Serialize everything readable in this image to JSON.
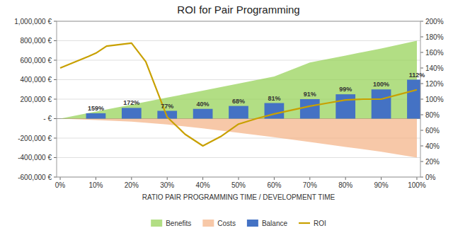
{
  "chart_data": {
    "type": "bar",
    "title": "ROI for Pair Programming",
    "xlabel": "RATIO PAIR PROGRAMMING TIME / DEVELOPMENT TIME",
    "xlim": [
      -1,
      101
    ],
    "xticks": [
      {
        "value": 0,
        "label": "0%"
      },
      {
        "value": 10,
        "label": "10%"
      },
      {
        "value": 20,
        "label": "20%"
      },
      {
        "value": 30,
        "label": "30%"
      },
      {
        "value": 40,
        "label": "40%"
      },
      {
        "value": 50,
        "label": "50%"
      },
      {
        "value": 60,
        "label": "60%"
      },
      {
        "value": 70,
        "label": "70%"
      },
      {
        "value": 80,
        "label": "80%"
      },
      {
        "value": 90,
        "label": "90%"
      },
      {
        "value": 100,
        "label": "100%"
      }
    ],
    "ylim": [
      -600000,
      1000000
    ],
    "yticks": [
      {
        "value": -600000,
        "label": "-600,000 €"
      },
      {
        "value": -400000,
        "label": "-400,000 €"
      },
      {
        "value": -200000,
        "label": "-200,000 €"
      },
      {
        "value": 0,
        "label": "- €"
      },
      {
        "value": 200000,
        "label": "200,000 €"
      },
      {
        "value": 400000,
        "label": "400,000 €"
      },
      {
        "value": 600000,
        "label": "600,000 €"
      },
      {
        "value": 800000,
        "label": "800,000 €"
      },
      {
        "value": 1000000,
        "label": "1,000,000 €"
      }
    ],
    "y2lim": [
      0,
      200
    ],
    "y2ticks": [
      {
        "value": 0,
        "label": "0%"
      },
      {
        "value": 20,
        "label": "20%"
      },
      {
        "value": 40,
        "label": "40%"
      },
      {
        "value": 60,
        "label": "60%"
      },
      {
        "value": 80,
        "label": "80%"
      },
      {
        "value": 100,
        "label": "100%"
      },
      {
        "value": 120,
        "label": "120%"
      },
      {
        "value": 140,
        "label": "140%"
      },
      {
        "value": 160,
        "label": "160%"
      },
      {
        "value": 180,
        "label": "180%"
      },
      {
        "value": 200,
        "label": "200%"
      }
    ],
    "grid": true,
    "legend": "bottom",
    "series": [
      {
        "name": "Benefits",
        "type": "area",
        "color": "#92d050",
        "x": [
          0,
          10,
          20,
          30,
          40,
          50,
          60,
          70,
          80,
          90,
          100
        ],
        "values": [
          0,
          72000,
          144000,
          216000,
          288000,
          360000,
          432000,
          576000,
          648000,
          720000,
          800000
        ]
      },
      {
        "name": "Costs",
        "type": "area",
        "color": "#f4b183",
        "x": [
          0,
          10,
          20,
          30,
          40,
          50,
          60,
          70,
          80,
          90,
          100
        ],
        "values": [
          0,
          -15000,
          -30000,
          -60000,
          -100000,
          -145000,
          -190000,
          -240000,
          -290000,
          -340000,
          -400000
        ]
      },
      {
        "name": "Balance",
        "type": "bar",
        "color": "#4472c4",
        "x": [
          10,
          20,
          30,
          40,
          50,
          60,
          70,
          80,
          90,
          100
        ],
        "values": [
          55000,
          110000,
          80000,
          100000,
          130000,
          160000,
          200000,
          250000,
          300000,
          400000
        ]
      },
      {
        "name": "ROI",
        "type": "line",
        "axis": "y2",
        "color": "#c8a000",
        "x": [
          0,
          8,
          10,
          13,
          20,
          24,
          30,
          35,
          40,
          45,
          50,
          55,
          60,
          65,
          70,
          75,
          80,
          85,
          90,
          95,
          100
        ],
        "values": [
          140,
          155,
          159,
          168,
          172,
          148,
          77,
          55,
          40,
          52,
          68,
          75,
          81,
          86,
          91,
          95,
          99,
          100,
          100,
          106,
          112
        ]
      }
    ],
    "annotations": [
      {
        "text": "159%",
        "x": 10
      },
      {
        "text": "172%",
        "x": 20
      },
      {
        "text": "77%",
        "x": 30
      },
      {
        "text": "40%",
        "x": 40
      },
      {
        "text": "68%",
        "x": 50
      },
      {
        "text": "81%",
        "x": 60
      },
      {
        "text": "91%",
        "x": 70
      },
      {
        "text": "99%",
        "x": 80
      },
      {
        "text": "100%",
        "x": 90
      },
      {
        "text": "112%",
        "x": 100
      }
    ]
  }
}
